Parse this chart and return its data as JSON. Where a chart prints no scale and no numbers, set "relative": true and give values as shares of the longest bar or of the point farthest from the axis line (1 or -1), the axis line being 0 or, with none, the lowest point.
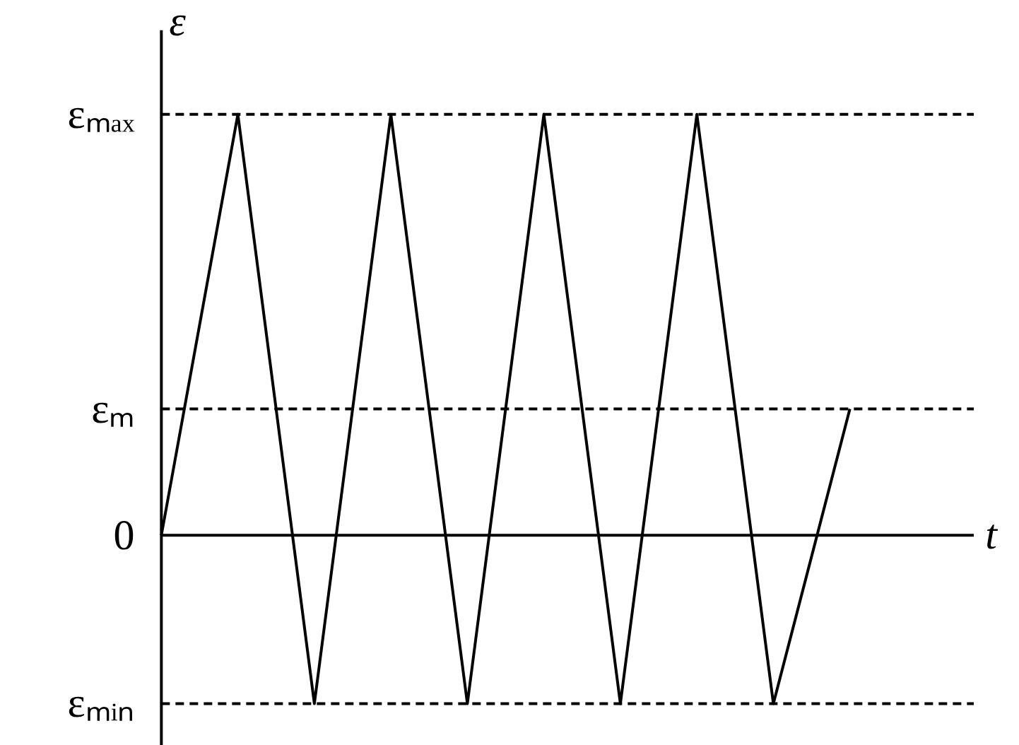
{
  "chart_data": {
    "type": "line",
    "relative": true,
    "xlabel": "t",
    "ylabel": "ε",
    "categories": [
      null,
      null,
      null,
      null,
      null,
      null,
      null,
      null,
      null,
      null
    ],
    "series": [
      {
        "color": "#000000",
        "values": [
          0,
          1,
          -0.4,
          1,
          -0.4,
          1,
          -0.4,
          1,
          -0.4,
          0.3
        ]
      }
    ],
    "line_style": "solid",
    "ref_lines": [
      {
        "axis": "y",
        "value": 1,
        "label": "εₘₐₓ",
        "line_style": "dashed",
        "color": "#000000"
      },
      {
        "axis": "y",
        "value": 0.3,
        "label": "εₘ",
        "line_style": "dashed",
        "color": "#000000"
      },
      {
        "axis": "y",
        "value": 0,
        "label": "0",
        "line_style": "solid",
        "color": "#000000"
      },
      {
        "axis": "y",
        "value": -0.4,
        "label": "εₘᵢₙ",
        "line_style": "dashed",
        "color": "#000000"
      }
    ]
  }
}
